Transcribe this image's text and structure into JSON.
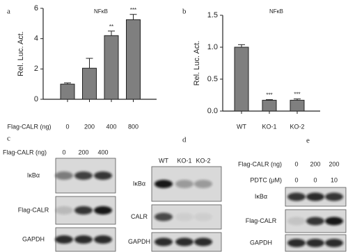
{
  "chart_data": [
    {
      "type": "bar",
      "panel": "a",
      "title": "NFκB",
      "ylabel": "Rel. Luc. Act.",
      "xlabel": "Flag-CALR (ng)",
      "categories": [
        "0",
        "200",
        "400",
        "800"
      ],
      "values": [
        1.0,
        2.05,
        4.2,
        5.25
      ],
      "errors": [
        0.08,
        0.65,
        0.3,
        0.35
      ],
      "significance": [
        null,
        null,
        "**",
        "***"
      ],
      "color": "#7f7f7f",
      "ylim": [
        0,
        6
      ],
      "yticks": [
        0,
        2,
        4,
        6
      ]
    },
    {
      "type": "bar",
      "panel": "b",
      "title": "NFκB",
      "ylabel": "Rel. Luc. Act.",
      "categories": [
        "WT",
        "KO-1",
        "KO-2"
      ],
      "values": [
        1.0,
        0.17,
        0.17
      ],
      "errors": [
        0.04,
        0.01,
        0.02
      ],
      "significance": [
        null,
        "***",
        "***"
      ],
      "color": "#7f7f7f",
      "ylim": [
        0,
        1.5
      ],
      "yticks": [
        {
          "value": 0,
          "label": "0.0"
        },
        0.5,
        {
          "value": 1,
          "label": "1.0"
        },
        1.5
      ]
    }
  ],
  "blots": [
    {
      "panel": "c",
      "headers": [
        {
          "label": "Flag-CALR (ng)",
          "lanes": [
            "0",
            "200",
            "400"
          ]
        }
      ],
      "rows": [
        "IκBα",
        "Flag-CALR",
        "GAPDH"
      ]
    },
    {
      "panel": "d",
      "headers": [
        {
          "lanes": [
            "WT",
            "KO-1",
            "KO-2"
          ]
        }
      ],
      "rows": [
        "IκBα",
        "CALR",
        "GAPDH"
      ]
    },
    {
      "panel": "e",
      "headers": [
        {
          "label": "Flag-CALR (ng)",
          "lanes": [
            "0",
            "200",
            "200"
          ]
        },
        {
          "label": "PDTC (μM)",
          "lanes": [
            "0",
            "0",
            "10"
          ]
        }
      ],
      "rows": [
        "IκBα",
        "Flag-CALR",
        "GAPDH"
      ]
    }
  ]
}
